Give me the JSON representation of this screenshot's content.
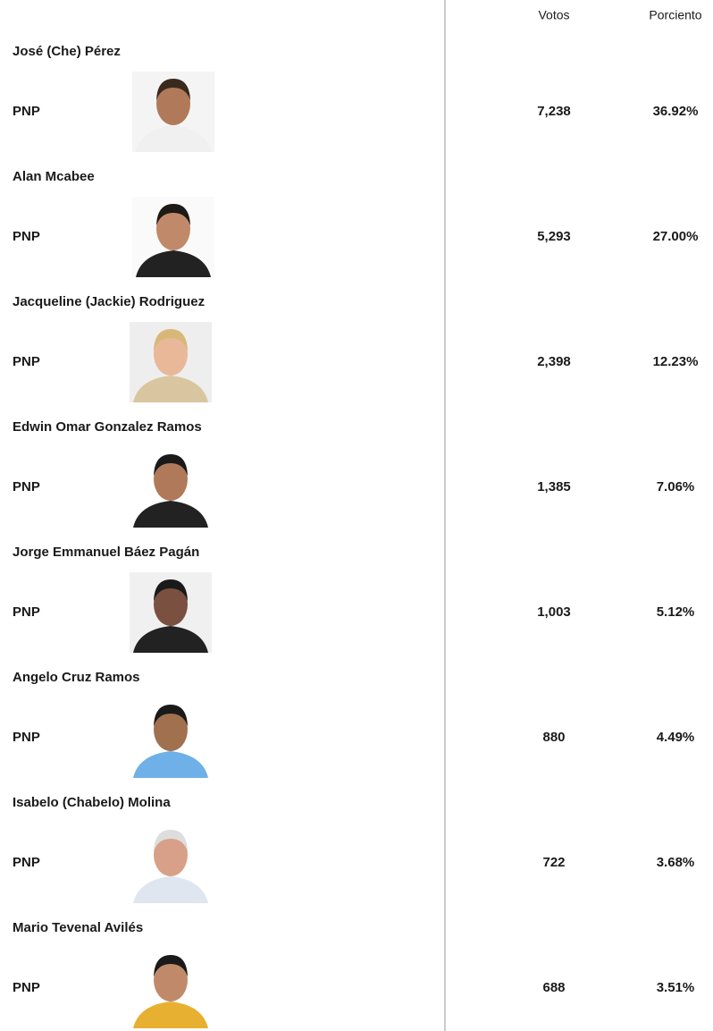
{
  "header": {
    "votes": "Votos",
    "percent": "Porciento"
  },
  "candidates": [
    {
      "name": "José (Che) Pérez",
      "party": "PNP",
      "votes": "7,238",
      "percent": "36.92%"
    },
    {
      "name": "Alan Mcabee",
      "party": "PNP",
      "votes": "5,293",
      "percent": "27.00%"
    },
    {
      "name": "Jacqueline (Jackie) Rodriguez",
      "party": "PNP",
      "votes": "2,398",
      "percent": "12.23%"
    },
    {
      "name": "Edwin Omar Gonzalez Ramos",
      "party": "PNP",
      "votes": "1,385",
      "percent": "7.06%"
    },
    {
      "name": "Jorge Emmanuel Báez Pagán",
      "party": "PNP",
      "votes": "1,003",
      "percent": "5.12%"
    },
    {
      "name": "Angelo Cruz Ramos",
      "party": "PNP",
      "votes": "880",
      "percent": "4.49%"
    },
    {
      "name": "Isabelo (Chabelo) Molina",
      "party": "PNP",
      "votes": "722",
      "percent": "3.68%"
    },
    {
      "name": "Mario Tevenal Avilés",
      "party": "PNP",
      "votes": "688",
      "percent": "3.51%"
    }
  ]
}
